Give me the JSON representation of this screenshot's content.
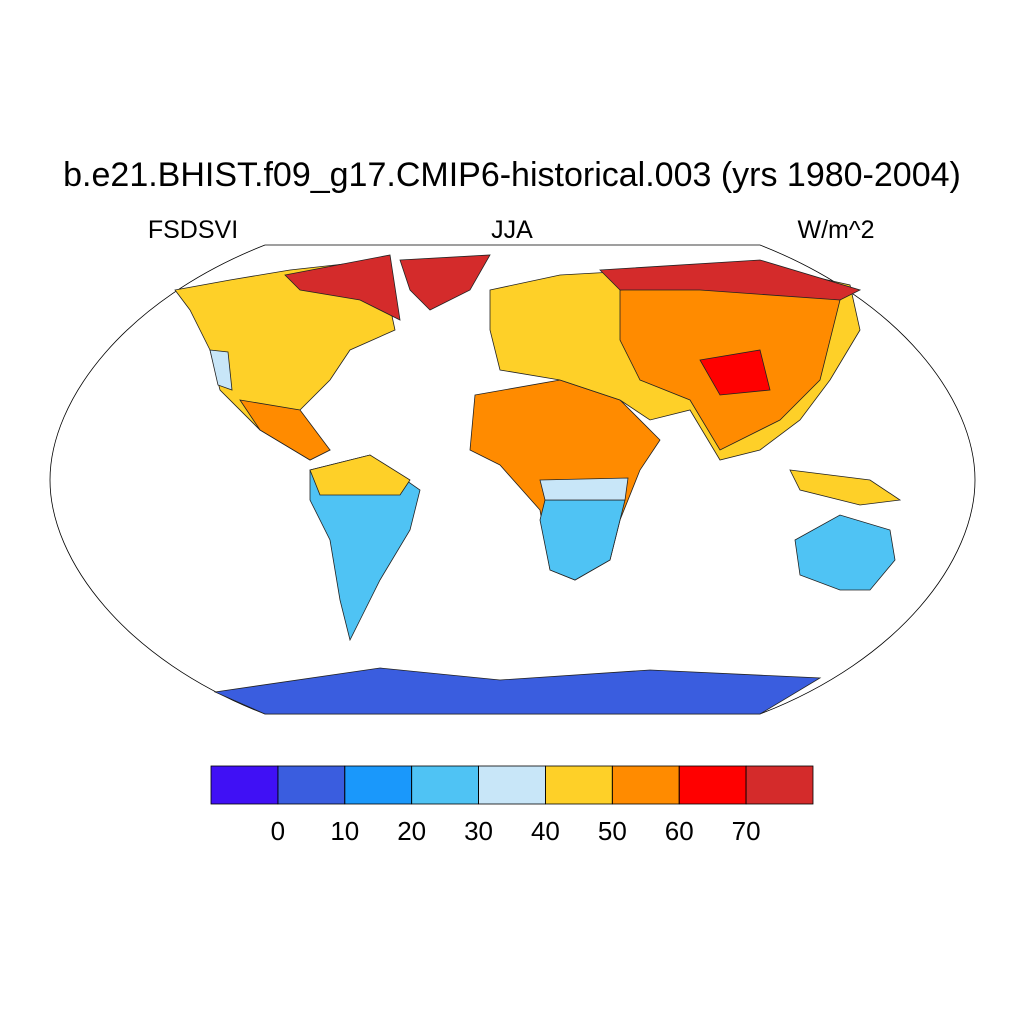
{
  "chart_data": {
    "type": "map",
    "title": "b.e21.BHIST.f09_g17.CMIP6-historical.003 (yrs 1980-2004)",
    "left_label": "FSDSVI",
    "center_label": "JJA",
    "right_label": "W/m^2",
    "colorbar": {
      "levels": [
        0,
        10,
        20,
        30,
        40,
        50,
        60,
        70
      ],
      "colors": [
        "#4010f5",
        "#3a5ddf",
        "#1a98fb",
        "#4fc3f4",
        "#c8e6f8",
        "#fed028",
        "#ff8b00",
        "#ff0000",
        "#d42b2b"
      ]
    }
  }
}
